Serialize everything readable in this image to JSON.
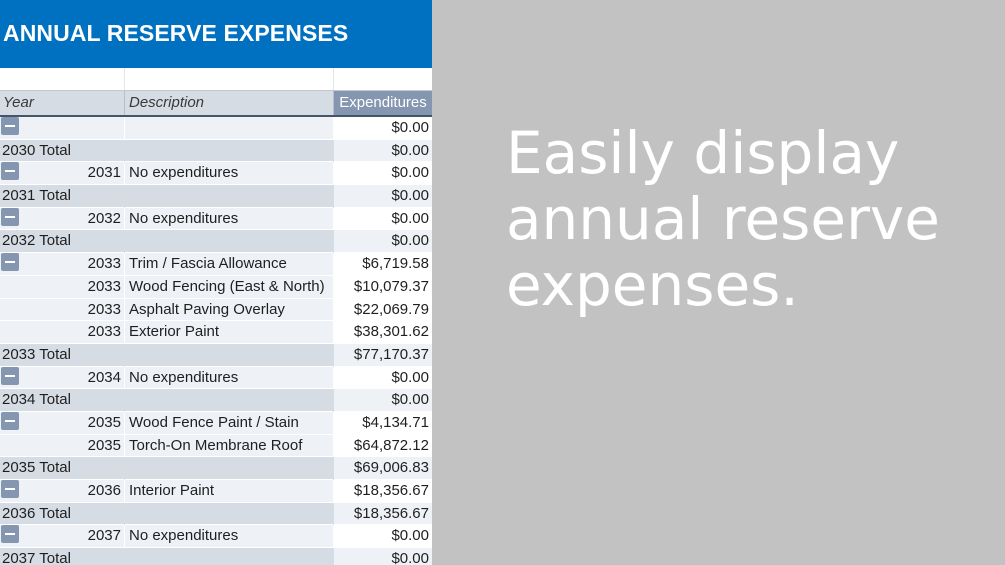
{
  "sheet": {
    "title": "ANNUAL RESERVE EXPENSES",
    "headers": {
      "year": "Year",
      "description": "Description",
      "expenditures": "Expenditures"
    },
    "rows": [
      {
        "type": "detail",
        "collapse": true,
        "year": "",
        "desc": "",
        "amount": "$0.00"
      },
      {
        "type": "total",
        "label": "2030 Total",
        "amount": "$0.00"
      },
      {
        "type": "detail",
        "collapse": true,
        "year": "2031",
        "desc": "No expenditures",
        "amount": "$0.00"
      },
      {
        "type": "total",
        "label": "2031 Total",
        "amount": "$0.00"
      },
      {
        "type": "detail",
        "collapse": true,
        "year": "2032",
        "desc": "No expenditures",
        "amount": "$0.00"
      },
      {
        "type": "total",
        "label": "2032 Total",
        "amount": "$0.00"
      },
      {
        "type": "detail",
        "collapse": true,
        "year": "2033",
        "desc": "Trim / Fascia Allowance",
        "amount": "$6,719.58"
      },
      {
        "type": "detail",
        "collapse": false,
        "year": "2033",
        "desc": "Wood Fencing (East & North)",
        "amount": "$10,079.37"
      },
      {
        "type": "detail",
        "collapse": false,
        "year": "2033",
        "desc": "Asphalt Paving Overlay",
        "amount": "$22,069.79"
      },
      {
        "type": "detail",
        "collapse": false,
        "year": "2033",
        "desc": "Exterior Paint",
        "amount": "$38,301.62"
      },
      {
        "type": "total",
        "label": "2033 Total",
        "amount": "$77,170.37"
      },
      {
        "type": "detail",
        "collapse": true,
        "year": "2034",
        "desc": "No expenditures",
        "amount": "$0.00"
      },
      {
        "type": "total",
        "label": "2034 Total",
        "amount": "$0.00"
      },
      {
        "type": "detail",
        "collapse": true,
        "year": "2035",
        "desc": "Wood Fence Paint / Stain",
        "amount": "$4,134.71"
      },
      {
        "type": "detail",
        "collapse": false,
        "year": "2035",
        "desc": "Torch-On Membrane Roof",
        "amount": "$64,872.12"
      },
      {
        "type": "total",
        "label": "2035 Total",
        "amount": "$69,006.83"
      },
      {
        "type": "detail",
        "collapse": true,
        "year": "2036",
        "desc": "Interior Paint",
        "amount": "$18,356.67"
      },
      {
        "type": "total",
        "label": "2036 Total",
        "amount": "$18,356.67"
      },
      {
        "type": "detail",
        "collapse": true,
        "year": "2037",
        "desc": "No expenditures",
        "amount": "$0.00"
      },
      {
        "type": "total",
        "label": "2037 Total",
        "amount": "$0.00"
      }
    ]
  },
  "caption": "Easily display annual reserve expenses.",
  "colors": {
    "title_bg": "#0070c0",
    "header_bg": "#d6dce4",
    "accent": "#8496b0",
    "background": "#c2c2c2"
  },
  "icons": {
    "collapse": "minus-icon"
  }
}
